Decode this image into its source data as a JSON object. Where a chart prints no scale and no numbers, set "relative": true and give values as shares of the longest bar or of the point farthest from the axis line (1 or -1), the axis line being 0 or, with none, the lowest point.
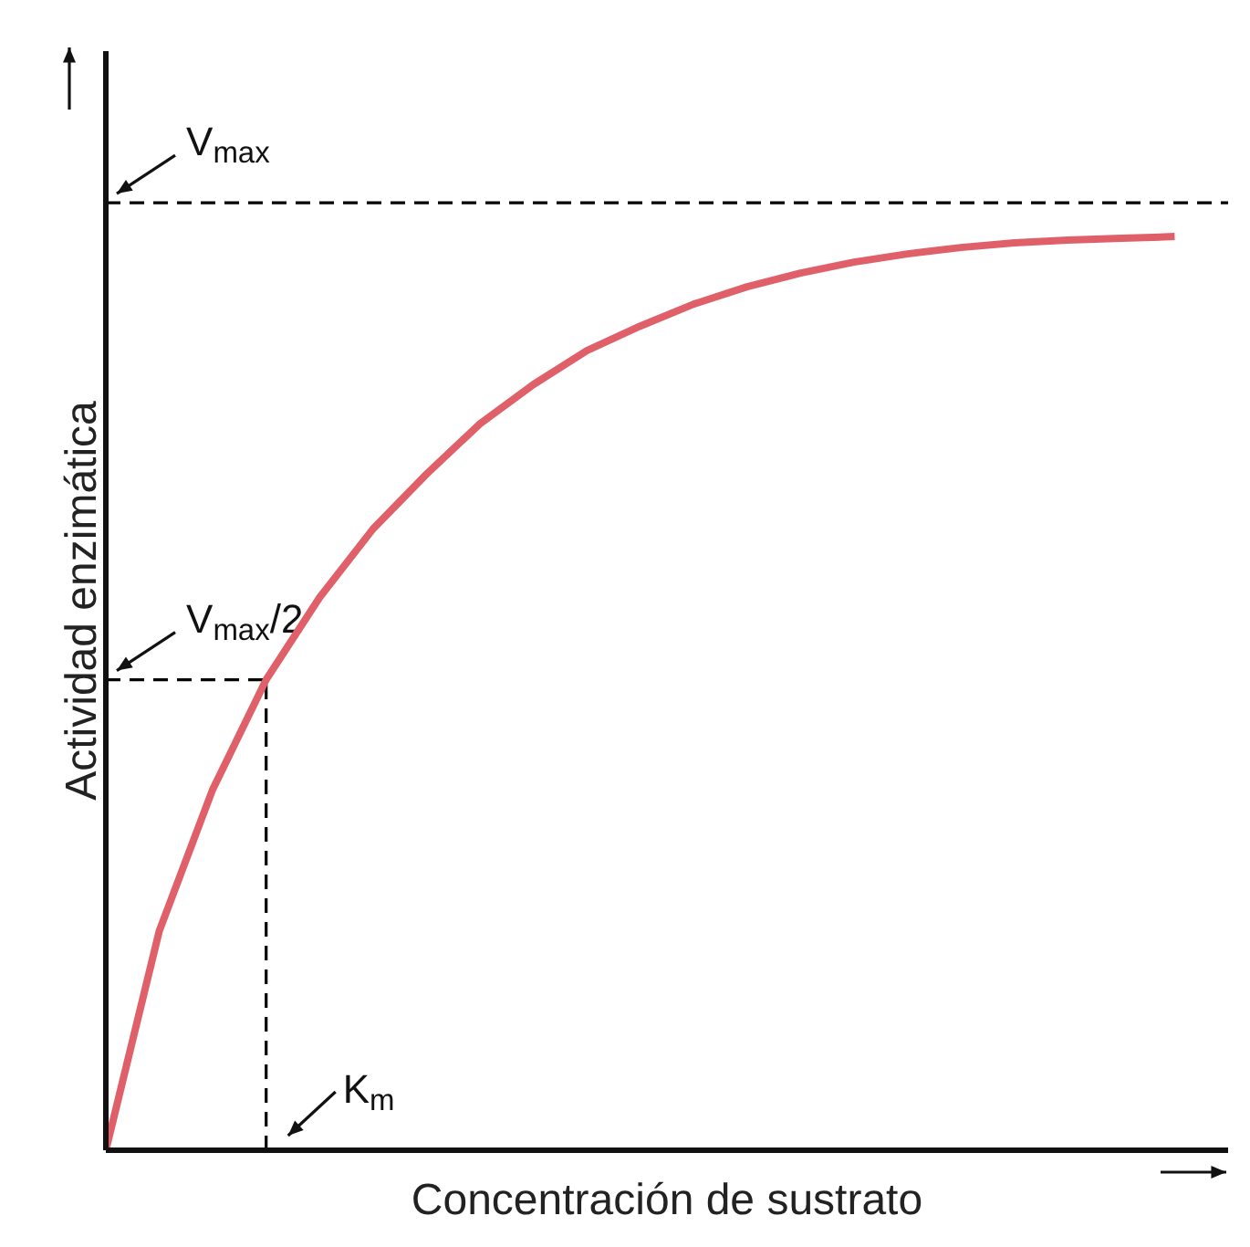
{
  "chart_data": {
    "type": "line",
    "relative": true,
    "xlabel": "Concentración de sustrato",
    "ylabel": "Actividad enzimática",
    "grid": false,
    "legend": false,
    "marker": "none",
    "line_style": "solid",
    "categories": [
      null,
      null,
      null,
      null,
      null,
      null,
      null,
      null,
      null,
      null,
      null,
      null,
      null,
      null,
      null,
      null,
      null,
      null,
      null,
      null,
      null
    ],
    "series": [
      {
        "color": "#e0606a",
        "values": [
          0,
          0.24,
          0.395,
          0.515,
          0.605,
          0.68,
          0.74,
          0.795,
          0.838,
          0.875,
          0.902,
          0.926,
          0.945,
          0.96,
          0.972,
          0.981,
          0.988,
          0.993,
          0.996,
          0.998,
          1
        ]
      }
    ],
    "ref_lines": [
      {
        "axis": "y",
        "value": 1.037,
        "label": "V$_{max}$",
        "line_style": "dashed",
        "color": "#000000"
      },
      {
        "axis": "y",
        "value": 0.515,
        "label": "V$_{max}$/2",
        "line_style": "dashed",
        "color": "#000000"
      }
    ],
    "annotations": [
      "K$_{m}$"
    ]
  }
}
